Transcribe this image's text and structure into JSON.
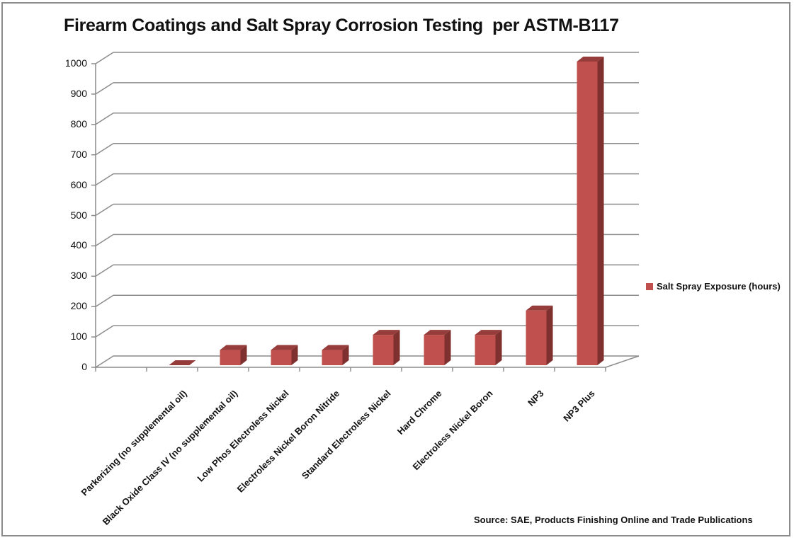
{
  "chart_data": {
    "type": "bar",
    "title": "Firearm Coatings and Salt Spray Corrosion Testing  per ASTM-B117",
    "categories": [
      "",
      "Parkerizing (no supplemental oil)",
      "Black Oxide Class IV (no supplemental oil)",
      "Low Phos Electroless Nickel",
      "Electroless Nickel Boron Nitride",
      "Standard Electroless Nickel",
      "Hard Chrome",
      "Electroless Nickel Boron",
      "NP3",
      "NP3 Plus"
    ],
    "series": [
      {
        "name": "Salt Spray Exposure (hours)",
        "values": [
          null,
          0,
          50,
          50,
          50,
          100,
          100,
          100,
          180,
          1000
        ],
        "color": "#c0504d"
      }
    ],
    "yticks": [
      "0",
      "100",
      "200",
      "300",
      "400",
      "500",
      "600",
      "700",
      "800",
      "900",
      "1000"
    ],
    "ylim": [
      0,
      1000
    ],
    "xlabel": "",
    "ylabel": "",
    "grid": true,
    "legend_position": "right",
    "style": "3d-column",
    "source": "Source: SAE, Products Finishing Online and Trade Publications"
  }
}
